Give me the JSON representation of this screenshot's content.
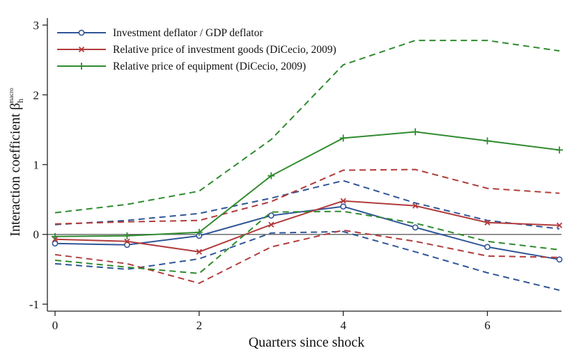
{
  "chart_data": {
    "type": "line",
    "xlabel": "Quarters since shock",
    "ylabel": "Interaction coefficient β",
    "ylabel_subscript": "h",
    "ylabel_superscript": "macro",
    "xlim": [
      0,
      7
    ],
    "ylim": [
      -1.1,
      3.1
    ],
    "x": [
      0,
      1,
      2,
      3,
      4,
      5,
      6,
      7
    ],
    "x_ticks": [
      0,
      2,
      4,
      6
    ],
    "y_ticks": [
      -1,
      0,
      1,
      2,
      3
    ],
    "zero_line": true,
    "grid": false,
    "legend_position": "top-left",
    "series": [
      {
        "name": "Investment deflator / GDP deflator",
        "color": "#2f5597",
        "marker": "circle",
        "values": [
          -0.13,
          -0.15,
          -0.02,
          0.27,
          0.4,
          0.1,
          -0.18,
          -0.36
        ],
        "lower": [
          -0.42,
          -0.5,
          -0.35,
          0.02,
          0.04,
          -0.25,
          -0.55,
          -0.8
        ],
        "upper": [
          0.14,
          0.2,
          0.3,
          0.52,
          0.77,
          0.45,
          0.2,
          0.08
        ]
      },
      {
        "name": "Relative price of investment goods (DiCecio, 2009)",
        "color": "#b23b3b",
        "marker": "x",
        "values": [
          -0.07,
          -0.1,
          -0.25,
          0.14,
          0.48,
          0.41,
          0.17,
          0.13
        ],
        "lower": [
          -0.29,
          -0.42,
          -0.7,
          -0.18,
          0.06,
          -0.1,
          -0.31,
          -0.33
        ],
        "upper": [
          0.15,
          0.18,
          0.2,
          0.47,
          0.92,
          0.93,
          0.66,
          0.59
        ]
      },
      {
        "name": "Relative price of equipment (DiCecio, 2009)",
        "color": "#2e8b2e",
        "marker": "plus",
        "values": [
          -0.03,
          -0.02,
          0.03,
          0.84,
          1.38,
          1.47,
          1.34,
          1.21
        ],
        "lower": [
          -0.37,
          -0.47,
          -0.56,
          0.32,
          0.33,
          0.16,
          -0.1,
          -0.22
        ],
        "upper": [
          0.31,
          0.43,
          0.62,
          1.36,
          2.43,
          2.78,
          2.78,
          2.63
        ]
      }
    ]
  }
}
